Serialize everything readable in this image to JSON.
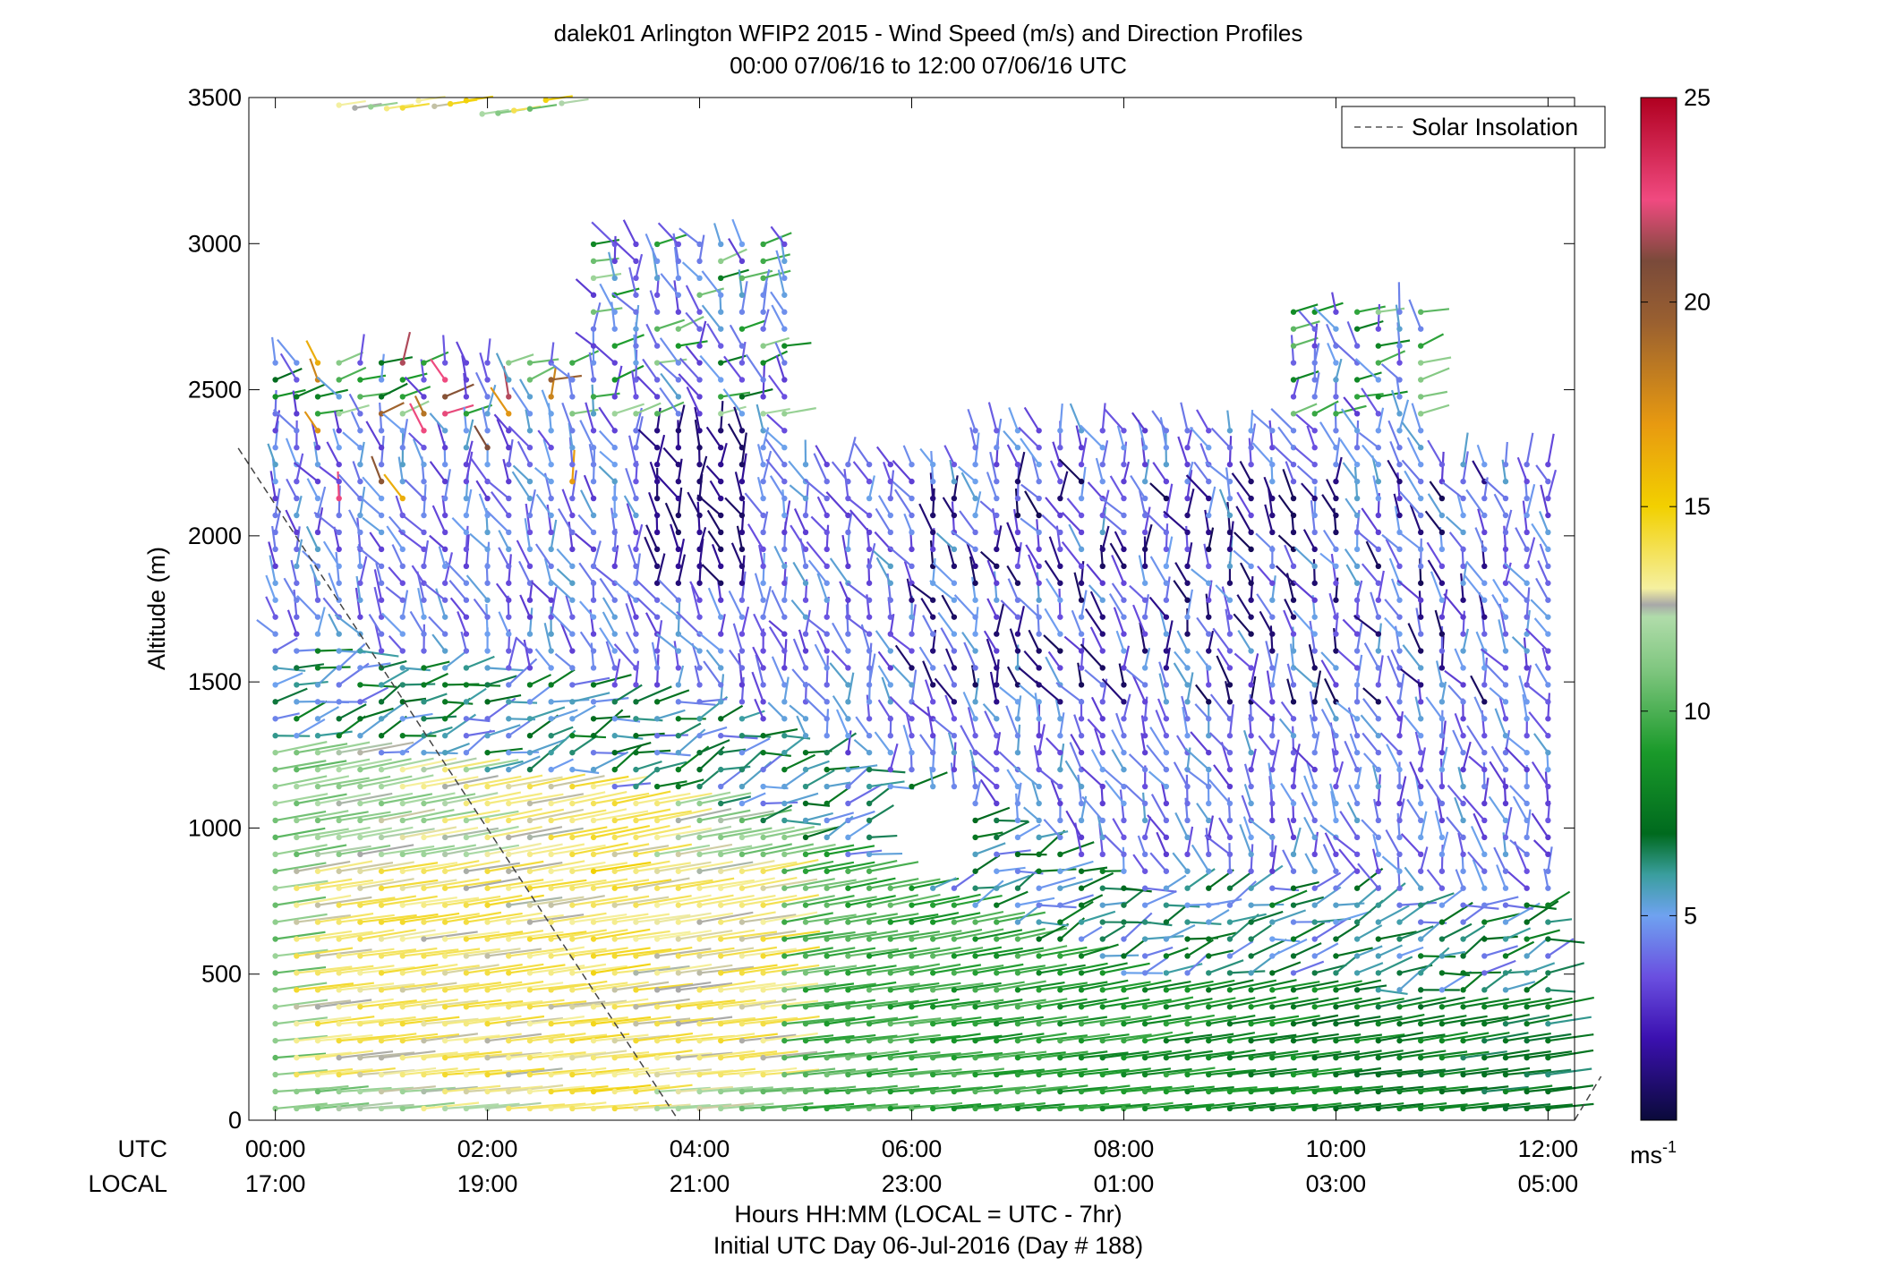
{
  "title": {
    "line1": "dalek01 Arlington WFIP2 2015 - Wind Speed (m/s) and Direction Profiles",
    "line2": "00:00 07/06/16 to 12:00 07/06/16  UTC"
  },
  "ylabel": "Altitude (m)",
  "row_labels": {
    "utc": "UTC",
    "local": "LOCAL"
  },
  "xlabel": {
    "line1": "Hours HH:MM  (LOCAL = UTC - 7hr)",
    "line2": "Initial UTC Day 06-Jul-2016 (Day # 188)"
  },
  "legend": {
    "label": "Solar Insolation",
    "position": "top-right"
  },
  "colorbar": {
    "ticks": [
      5,
      10,
      15,
      20,
      25
    ],
    "unit": "ms",
    "unit_exp": "-1",
    "range": [
      0,
      25
    ],
    "stops": [
      {
        "v": 0,
        "c": "#0a0a3a"
      },
      {
        "v": 2,
        "c": "#3b10b0"
      },
      {
        "v": 3.5,
        "c": "#6a4fe0"
      },
      {
        "v": 5,
        "c": "#6fa2f0"
      },
      {
        "v": 6,
        "c": "#3a9e9e"
      },
      {
        "v": 7,
        "c": "#006a1e"
      },
      {
        "v": 9,
        "c": "#1a9a2a"
      },
      {
        "v": 11,
        "c": "#7fc67f"
      },
      {
        "v": 12.3,
        "c": "#b0dcaa"
      },
      {
        "v": 12.6,
        "c": "#a8a8a8"
      },
      {
        "v": 13,
        "c": "#f5f0a0"
      },
      {
        "v": 15,
        "c": "#f2d000"
      },
      {
        "v": 17,
        "c": "#e89a10"
      },
      {
        "v": 19.5,
        "c": "#9a6030"
      },
      {
        "v": 21,
        "c": "#7a4a3a"
      },
      {
        "v": 22.5,
        "c": "#f04a80"
      },
      {
        "v": 25,
        "c": "#b00020"
      }
    ]
  },
  "chart_data": {
    "type": "wind-barb profile",
    "x_range_hours": [
      -0.25,
      12.25
    ],
    "ylim": [
      0,
      3500
    ],
    "yticks": [
      0,
      500,
      1000,
      1500,
      2000,
      2500,
      3000,
      3500
    ],
    "xticks": [
      {
        "h": 0,
        "utc": "00:00",
        "local": "17:00"
      },
      {
        "h": 2,
        "utc": "02:00",
        "local": "19:00"
      },
      {
        "h": 4,
        "utc": "04:00",
        "local": "21:00"
      },
      {
        "h": 6,
        "utc": "06:00",
        "local": "23:00"
      },
      {
        "h": 8,
        "utc": "08:00",
        "local": "01:00"
      },
      {
        "h": 10,
        "utc": "10:00",
        "local": "03:00"
      },
      {
        "h": 12,
        "utc": "12:00",
        "local": "05:00"
      }
    ],
    "solar_insolation_segments": [
      [
        [
          -0.35,
          2300
        ],
        [
          3.8,
          0
        ]
      ],
      [
        [
          12.25,
          0
        ],
        [
          12.5,
          150
        ]
      ]
    ],
    "profiles_approx": {
      "note_time_step_hours": 0.2,
      "bottom_layer_speed_ms": {
        "h0": 11,
        "h3": 14,
        "h5": 10,
        "h12": 7
      },
      "jet_top_m": {
        "h0": 1300,
        "h4": 1100,
        "h8": 500,
        "h12": 400
      },
      "upper_speed_ms": 3
    }
  }
}
